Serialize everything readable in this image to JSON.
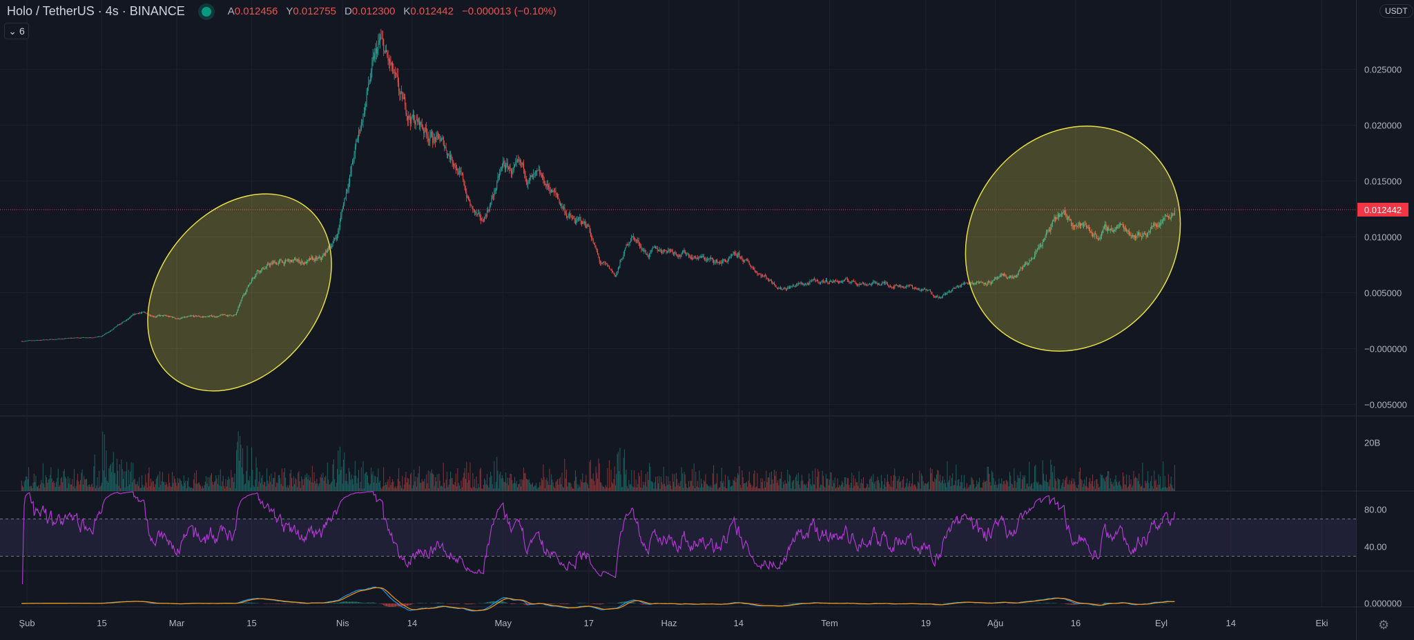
{
  "header": {
    "symbol": "Holo / TetherUS",
    "interval": "4s",
    "exchange": "BINANCE",
    "status_icon": "market-open-dot",
    "ohlc": [
      {
        "k": "A",
        "v": "0.012456"
      },
      {
        "k": "Y",
        "v": "0.012755"
      },
      {
        "k": "D",
        "v": "0.012300"
      },
      {
        "k": "K",
        "v": "0.012442"
      },
      {
        "k": "",
        "v": "−0.000013 (−0.10%)"
      }
    ],
    "indicators_count": "6"
  },
  "price_axis": {
    "currency": "USDT",
    "ticks": [
      "0.025000",
      "0.020000",
      "0.015000",
      "0.010000",
      "0.005000",
      "−0.000000",
      "−0.005000"
    ],
    "tick_values": [
      0.025,
      0.02,
      0.015,
      0.01,
      0.005,
      0,
      -0.005
    ],
    "last_price": "0.012442"
  },
  "volume_axis": {
    "label": "20B"
  },
  "rsi_axis": {
    "ticks": [
      "80.00",
      "40.00"
    ],
    "bands": [
      70,
      30
    ]
  },
  "macd_axis": {
    "tick": "0.000000"
  },
  "time_axis": [
    {
      "t": "Şub",
      "d": "2021-02-01"
    },
    {
      "t": "15",
      "d": "2021-02-15"
    },
    {
      "t": "Mar",
      "d": "2021-03-01"
    },
    {
      "t": "15",
      "d": "2021-03-15"
    },
    {
      "t": "Nis",
      "d": "2021-04-01"
    },
    {
      "t": "14",
      "d": "2021-04-14"
    },
    {
      "t": "May",
      "d": "2021-05-01"
    },
    {
      "t": "17",
      "d": "2021-05-17"
    },
    {
      "t": "Haz",
      "d": "2021-06-01"
    },
    {
      "t": "14",
      "d": "2021-06-14"
    },
    {
      "t": "Tem",
      "d": "2021-07-01"
    },
    {
      "t": "19",
      "d": "2021-07-19"
    },
    {
      "t": "Ağu",
      "d": "2021-08-01"
    },
    {
      "t": "16",
      "d": "2021-08-16"
    },
    {
      "t": "Eyl",
      "d": "2021-09-01"
    },
    {
      "t": "14",
      "d": "2021-09-14"
    },
    {
      "t": "Eki",
      "d": "2021-10-01"
    }
  ],
  "colors": {
    "up": "#26a69a",
    "down": "#ef5350",
    "rsi": "#b03ad0",
    "macd": "#2196f3",
    "signal": "#ff9800",
    "annotation": "#e8e04a",
    "bg": "#131722"
  },
  "chart_data": {
    "type": "candlestick",
    "interval": "4h",
    "ylim": [
      -0.0055,
      0.0285
    ],
    "approx_closes": [
      [
        "2021-02-01",
        0.0007
      ],
      [
        "2021-02-15",
        0.0011
      ],
      [
        "2021-02-22",
        0.0032
      ],
      [
        "2021-02-25",
        0.003
      ],
      [
        "2021-03-01",
        0.0027
      ],
      [
        "2021-03-12",
        0.003
      ],
      [
        "2021-03-14",
        0.0053
      ],
      [
        "2021-03-16",
        0.0072
      ],
      [
        "2021-03-20",
        0.0077
      ],
      [
        "2021-03-28",
        0.0078
      ],
      [
        "2021-03-31",
        0.0102
      ],
      [
        "2021-04-02",
        0.015
      ],
      [
        "2021-04-04",
        0.019
      ],
      [
        "2021-04-06",
        0.0239
      ],
      [
        "2021-04-08",
        0.027
      ],
      [
        "2021-04-10",
        0.0247
      ],
      [
        "2021-04-12",
        0.0215
      ],
      [
        "2021-04-18",
        0.019
      ],
      [
        "2021-04-22",
        0.017
      ],
      [
        "2021-04-25",
        0.0126
      ],
      [
        "2021-04-27",
        0.011
      ],
      [
        "2021-05-01",
        0.0162
      ],
      [
        "2021-05-05",
        0.0154
      ],
      [
        "2021-05-10",
        0.0142
      ],
      [
        "2021-05-14",
        0.0114
      ],
      [
        "2021-05-17",
        0.011
      ],
      [
        "2021-05-19",
        0.0077
      ],
      [
        "2021-05-22",
        0.0065
      ],
      [
        "2021-05-25",
        0.0102
      ],
      [
        "2021-05-28",
        0.0085
      ],
      [
        "2021-06-01",
        0.009
      ],
      [
        "2021-06-10",
        0.0077
      ],
      [
        "2021-06-14",
        0.0081
      ],
      [
        "2021-06-22",
        0.0055
      ],
      [
        "2021-07-01",
        0.0061
      ],
      [
        "2021-07-15",
        0.0057
      ],
      [
        "2021-07-22",
        0.0047
      ],
      [
        "2021-07-27",
        0.006
      ],
      [
        "2021-08-01",
        0.0061
      ],
      [
        "2021-08-05",
        0.0065
      ],
      [
        "2021-08-08",
        0.0081
      ],
      [
        "2021-08-10",
        0.0098
      ],
      [
        "2021-08-13",
        0.0118
      ],
      [
        "2021-08-16",
        0.0114
      ],
      [
        "2021-08-20",
        0.0102
      ],
      [
        "2021-08-24",
        0.011
      ],
      [
        "2021-08-28",
        0.0102
      ],
      [
        "2021-08-31",
        0.0111
      ],
      [
        "2021-09-03",
        0.01244
      ]
    ],
    "annotations": [
      {
        "type": "ellipse",
        "from": "2021-02-24",
        "to": "2021-03-31"
      },
      {
        "type": "ellipse",
        "from": "2021-07-27",
        "to": "2021-09-04"
      }
    ]
  }
}
